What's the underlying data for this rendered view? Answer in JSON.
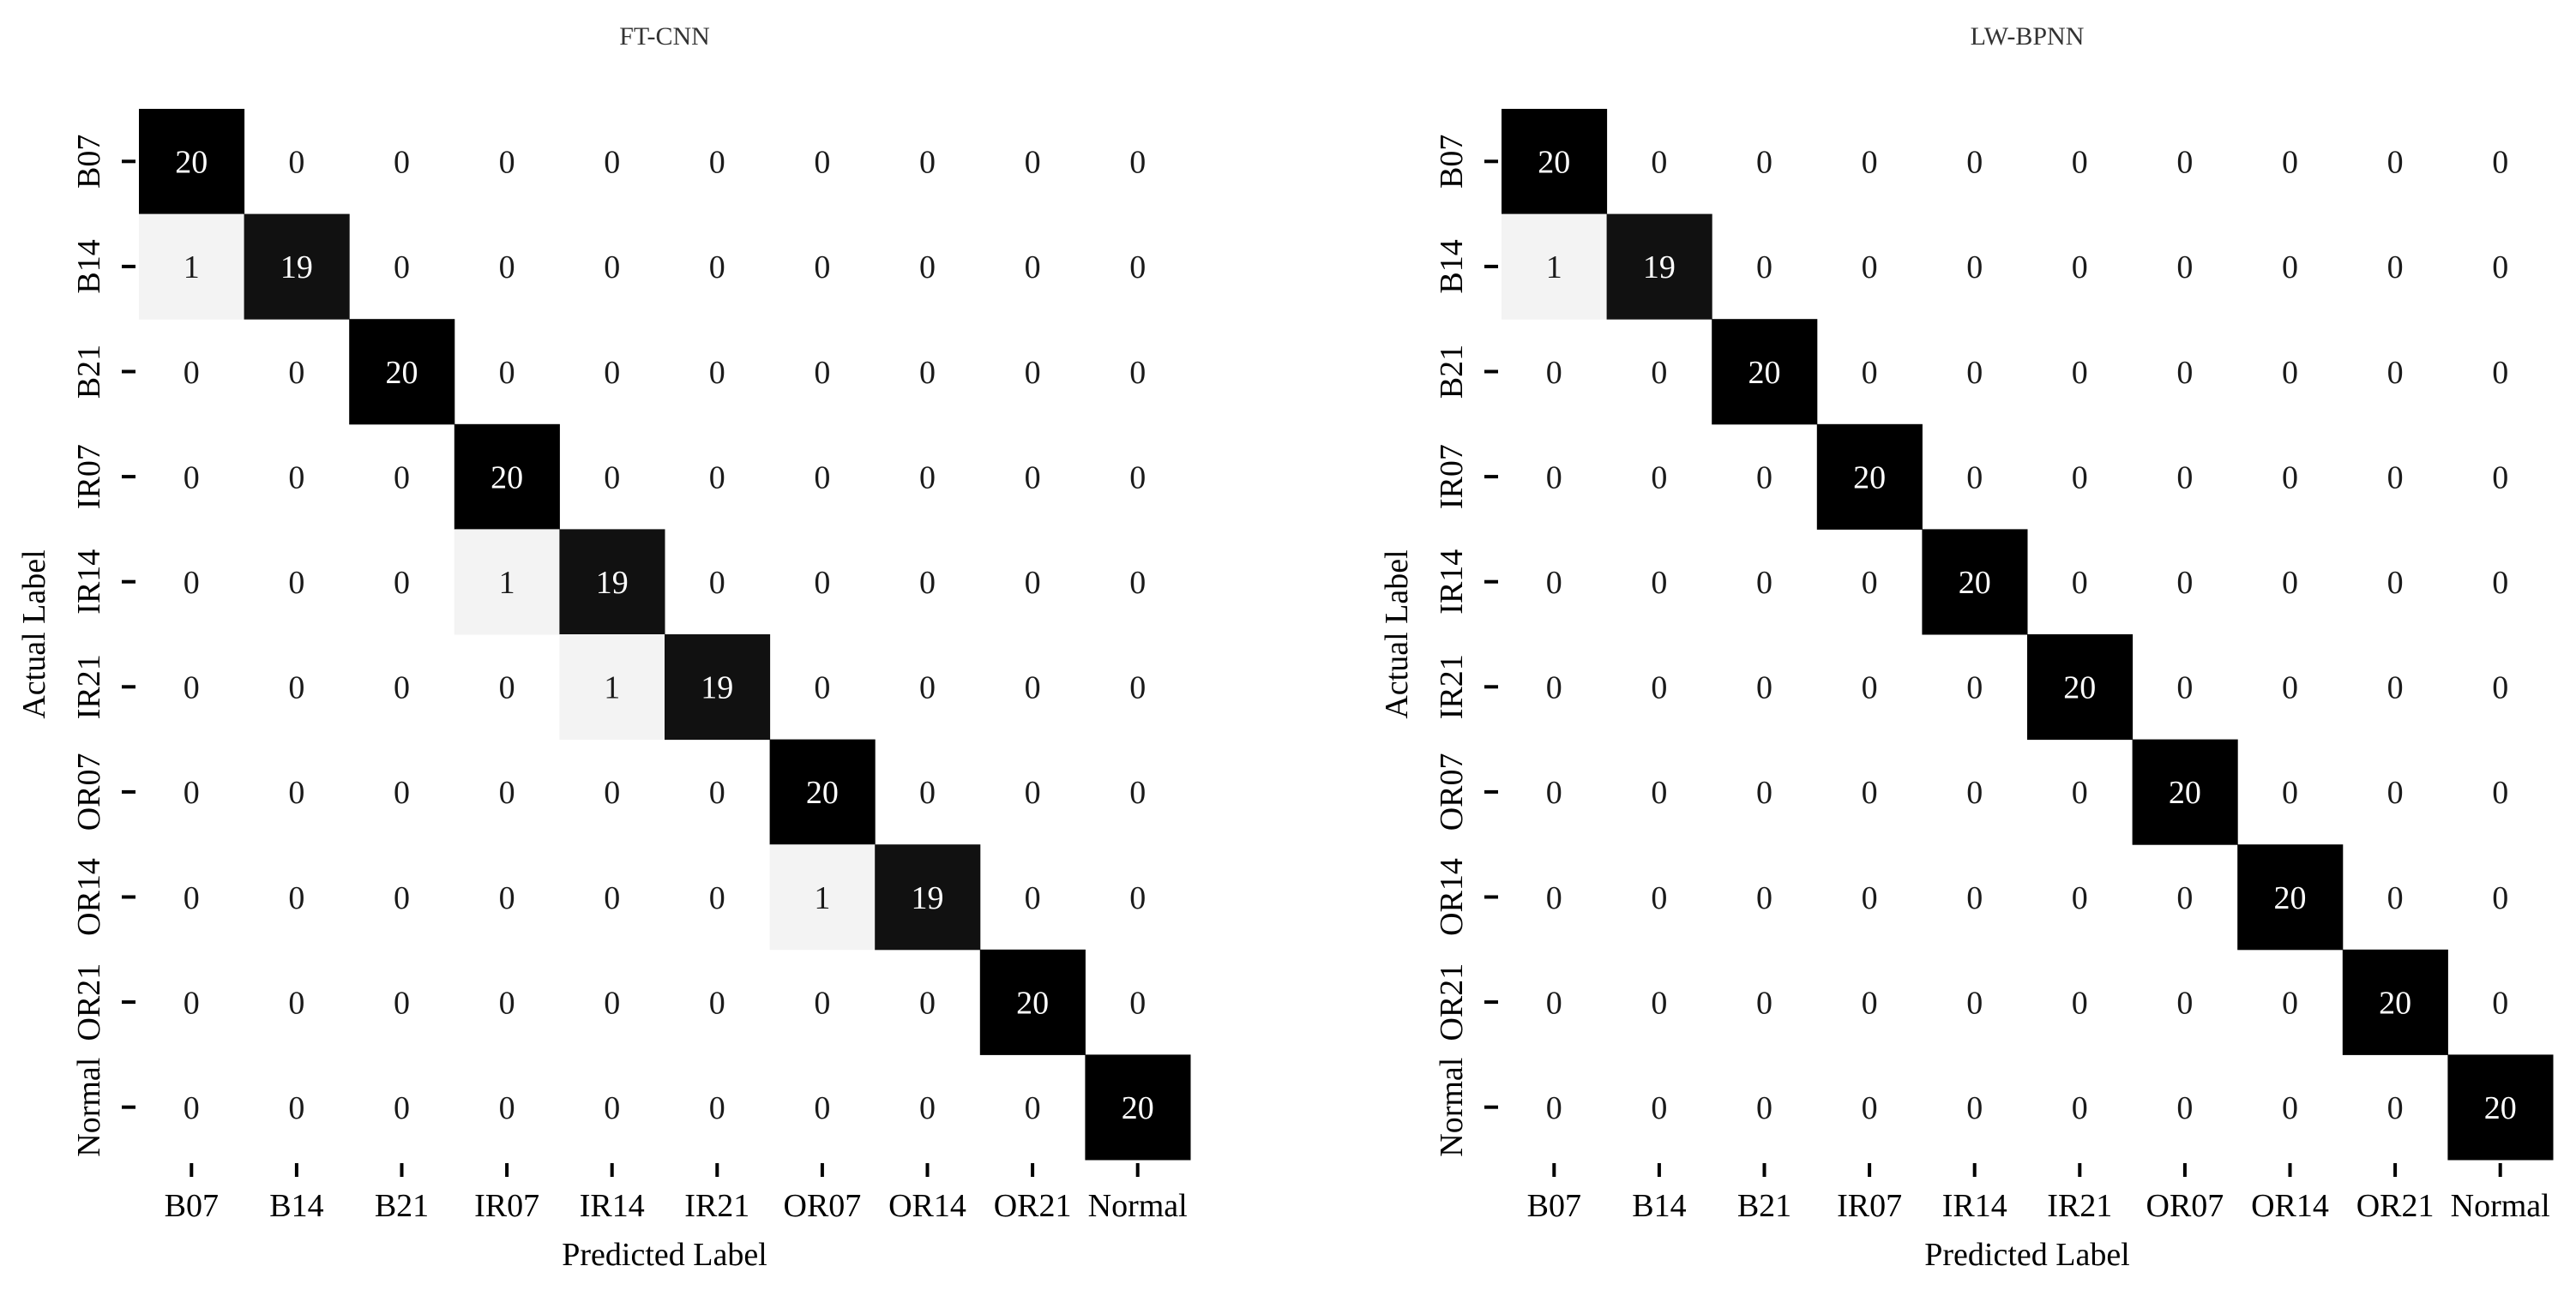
{
  "chart_data": [
    {
      "type": "heatmap",
      "title": "FT-CNN",
      "xlabel": "Predicted Label",
      "ylabel": "Actual Label",
      "x_categories": [
        "B07",
        "B14",
        "B21",
        "IR07",
        "IR14",
        "IR21",
        "OR07",
        "OR14",
        "OR21",
        "Normal"
      ],
      "y_categories": [
        "B07",
        "B14",
        "B21",
        "IR07",
        "IR14",
        "IR21",
        "OR07",
        "OR14",
        "OR21",
        "Normal"
      ],
      "values": [
        [
          20,
          0,
          0,
          0,
          0,
          0,
          0,
          0,
          0,
          0
        ],
        [
          1,
          19,
          0,
          0,
          0,
          0,
          0,
          0,
          0,
          0
        ],
        [
          0,
          0,
          20,
          0,
          0,
          0,
          0,
          0,
          0,
          0
        ],
        [
          0,
          0,
          0,
          20,
          0,
          0,
          0,
          0,
          0,
          0
        ],
        [
          0,
          0,
          0,
          1,
          19,
          0,
          0,
          0,
          0,
          0
        ],
        [
          0,
          0,
          0,
          0,
          1,
          19,
          0,
          0,
          0,
          0
        ],
        [
          0,
          0,
          0,
          0,
          0,
          0,
          20,
          0,
          0,
          0
        ],
        [
          0,
          0,
          0,
          0,
          0,
          0,
          1,
          19,
          0,
          0
        ],
        [
          0,
          0,
          0,
          0,
          0,
          0,
          0,
          0,
          20,
          0
        ],
        [
          0,
          0,
          0,
          0,
          0,
          0,
          0,
          0,
          0,
          20
        ]
      ],
      "value_range": [
        0,
        20
      ],
      "colormap": "white-to-black",
      "grid": false,
      "legend": "none"
    },
    {
      "type": "heatmap",
      "title": "LW-BPNN",
      "xlabel": "Predicted Label",
      "ylabel": "Actual Label",
      "x_categories": [
        "B07",
        "B14",
        "B21",
        "IR07",
        "IR14",
        "IR21",
        "OR07",
        "OR14",
        "OR21",
        "Normal"
      ],
      "y_categories": [
        "B07",
        "B14",
        "B21",
        "IR07",
        "IR14",
        "IR21",
        "OR07",
        "OR14",
        "OR21",
        "Normal"
      ],
      "values": [
        [
          20,
          0,
          0,
          0,
          0,
          0,
          0,
          0,
          0,
          0
        ],
        [
          1,
          19,
          0,
          0,
          0,
          0,
          0,
          0,
          0,
          0
        ],
        [
          0,
          0,
          20,
          0,
          0,
          0,
          0,
          0,
          0,
          0
        ],
        [
          0,
          0,
          0,
          20,
          0,
          0,
          0,
          0,
          0,
          0
        ],
        [
          0,
          0,
          0,
          0,
          20,
          0,
          0,
          0,
          0,
          0
        ],
        [
          0,
          0,
          0,
          0,
          0,
          20,
          0,
          0,
          0,
          0
        ],
        [
          0,
          0,
          0,
          0,
          0,
          0,
          20,
          0,
          0,
          0
        ],
        [
          0,
          0,
          0,
          0,
          0,
          0,
          0,
          20,
          0,
          0
        ],
        [
          0,
          0,
          0,
          0,
          0,
          0,
          0,
          0,
          20,
          0
        ],
        [
          0,
          0,
          0,
          0,
          0,
          0,
          0,
          0,
          0,
          20
        ]
      ],
      "value_range": [
        0,
        20
      ],
      "colormap": "white-to-black",
      "grid": false,
      "legend": "none"
    }
  ]
}
